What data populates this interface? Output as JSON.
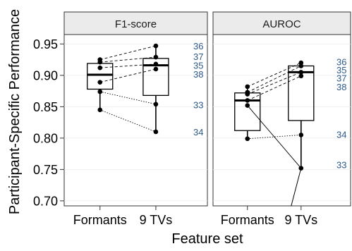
{
  "chart_data": {
    "type": "box",
    "xlabel": "Feature set",
    "ylabel": "Participant-Specific Performance",
    "ylim": [
      0.692,
      0.965
    ],
    "yticks": [
      {
        "value": 0.95,
        "label": "0.95"
      },
      {
        "value": 0.9,
        "label": "0.90"
      },
      {
        "value": 0.85,
        "label": "0.85"
      },
      {
        "value": 0.8,
        "label": "0.80"
      },
      {
        "value": 0.75,
        "label": "0.75"
      },
      {
        "value": 0.7,
        "label": "0.70"
      }
    ],
    "categories": [
      "Formants",
      "9 TVs"
    ],
    "label_color": "#2e5a88",
    "facets": [
      {
        "title": "F1-score",
        "boxes": [
          {
            "category": "Formants",
            "q1": 0.878,
            "median": 0.901,
            "q3": 0.919,
            "whisker_low": 0.845,
            "whisker_high": 0.925
          },
          {
            "category": "9 TVs",
            "q1": 0.868,
            "median": 0.916,
            "q3": 0.927,
            "whisker_low": 0.81,
            "whisker_high": 0.947
          }
        ],
        "participants": [
          {
            "id": "36",
            "formants": 0.925,
            "tvs": 0.947,
            "label_y": 0.947,
            "line": "dashed"
          },
          {
            "id": "37",
            "formants": 0.921,
            "tvs": 0.929,
            "label_y": 0.93,
            "line": "dashed"
          },
          {
            "id": "35",
            "formants": 0.912,
            "tvs": 0.918,
            "label_y": 0.916,
            "line": "dashed"
          },
          {
            "id": "38",
            "formants": 0.889,
            "tvs": 0.91,
            "label_y": 0.902,
            "line": "dashed"
          },
          {
            "id": "33",
            "formants": 0.874,
            "tvs": 0.854,
            "label_y": 0.853,
            "line": "dotted"
          },
          {
            "id": "34",
            "formants": 0.845,
            "tvs": 0.81,
            "label_y": 0.81,
            "line": "dotted"
          }
        ]
      },
      {
        "title": "AUROC",
        "boxes": [
          {
            "category": "Formants",
            "q1": 0.812,
            "median": 0.86,
            "q3": 0.872,
            "whisker_low": 0.799,
            "whisker_high": 0.882
          },
          {
            "category": "9 TVs",
            "q1": 0.828,
            "median": 0.905,
            "q3": 0.915,
            "whisker_low": 0.752,
            "whisker_high": 0.92
          }
        ],
        "participants": [
          {
            "id": "36",
            "formants": 0.882,
            "tvs": 0.92,
            "label_y": 0.922,
            "line": "dashed"
          },
          {
            "id": "35",
            "formants": 0.873,
            "tvs": 0.915,
            "label_y": 0.909,
            "line": "dashed"
          },
          {
            "id": "37",
            "formants": 0.87,
            "tvs": 0.905,
            "label_y": 0.896,
            "line": "dashed"
          },
          {
            "id": "38",
            "formants": 0.86,
            "tvs": 0.899,
            "label_y": 0.882,
            "line": "dashed"
          },
          {
            "id": "34",
            "formants": 0.799,
            "tvs": 0.805,
            "label_y": 0.806,
            "line": "dotted"
          },
          {
            "id": "33",
            "formants": 0.852,
            "tvs": 0.752,
            "label_y": 0.758,
            "line": "solid"
          }
        ]
      }
    ]
  }
}
